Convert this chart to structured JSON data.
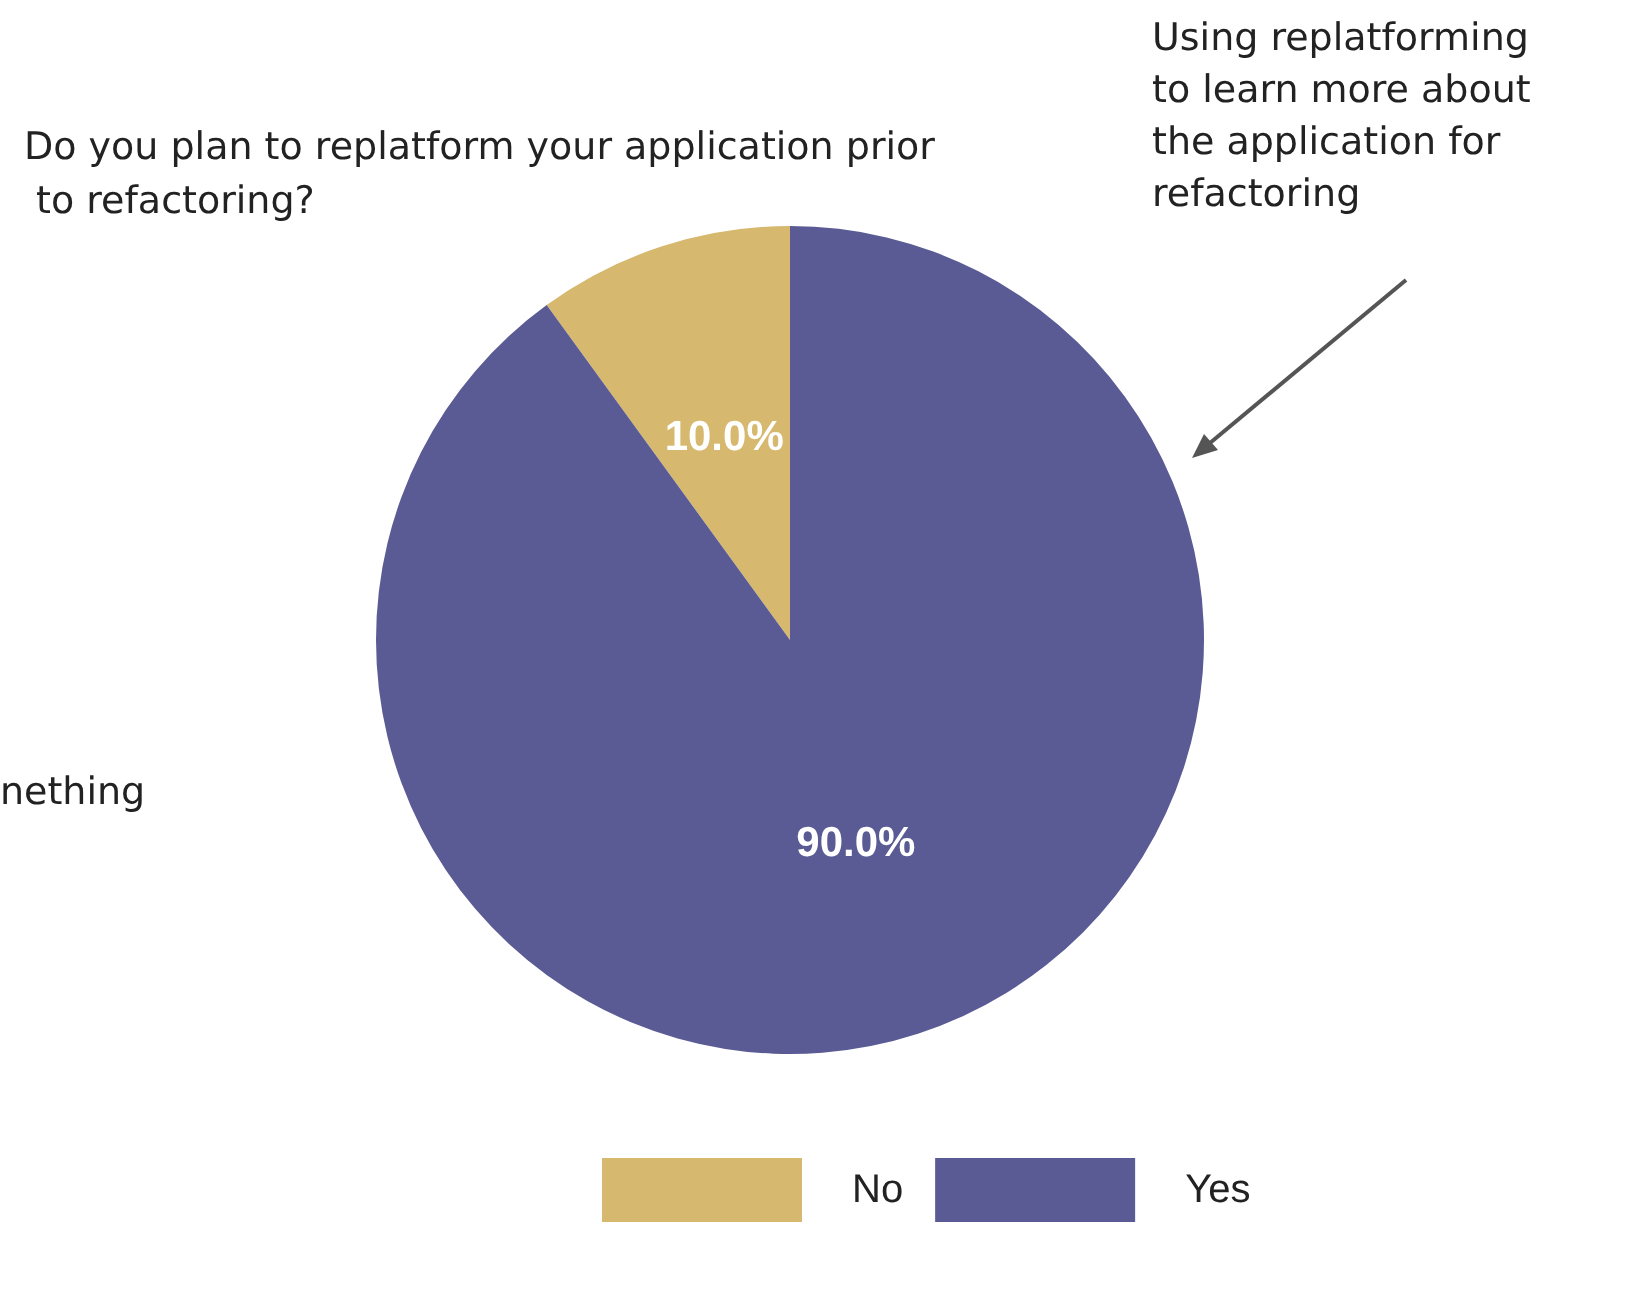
{
  "chart_data": {
    "type": "pie",
    "title": "Do you plan to replatform your application prior to refactoring?",
    "categories": [
      "No",
      "Yes"
    ],
    "values": [
      10,
      90
    ],
    "colors": [
      "#d6b86e",
      "#5a5a94"
    ],
    "value_labels": [
      "10.0%",
      "90.0%"
    ],
    "legend": "bottom",
    "annotations": [
      "Using replatforming to learn more about the application for refactoring",
      "nething"
    ]
  }
}
